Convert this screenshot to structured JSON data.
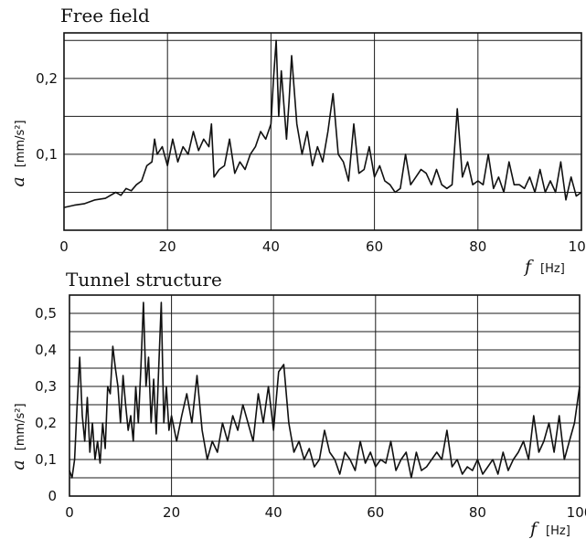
{
  "chart_data": [
    {
      "type": "line",
      "title": "Free field",
      "xlabel_var": "f",
      "xlabel_unit": "[Hz]",
      "ylabel_var": "a",
      "ylabel_unit": "[mm/s²]",
      "xlim": [
        0,
        100
      ],
      "ylim": [
        0,
        0.26
      ],
      "x_ticks": [
        0,
        20,
        40,
        60,
        80,
        100
      ],
      "y_ticks": [
        {
          "value": 0.1,
          "label": "0,1"
        },
        {
          "value": 0.2,
          "label": "0,2"
        }
      ],
      "grid": true,
      "series": [
        {
          "x": [
            0,
            2,
            4,
            6,
            8,
            10,
            11,
            12,
            13,
            14,
            15,
            16,
            17,
            17.5,
            18,
            19,
            20,
            21,
            22,
            23,
            24,
            25,
            26,
            27,
            28,
            28.5,
            29,
            30,
            31,
            32,
            33,
            34,
            35,
            36,
            37,
            38,
            39,
            40,
            40.5,
            41,
            41.5,
            42,
            43,
            43.5,
            44,
            45,
            46,
            47,
            48,
            49,
            50,
            51,
            52,
            53,
            54,
            55,
            56,
            57,
            58,
            59,
            60,
            61,
            62,
            63,
            64,
            65,
            66,
            67,
            68,
            69,
            70,
            71,
            72,
            73,
            74,
            75,
            76,
            77,
            78,
            79,
            80,
            81,
            82,
            83,
            84,
            85,
            86,
            87,
            88,
            89,
            90,
            91,
            92,
            93,
            94,
            95,
            96,
            97,
            98,
            99,
            100
          ],
          "y": [
            0.03,
            0.033,
            0.035,
            0.04,
            0.042,
            0.05,
            0.046,
            0.055,
            0.052,
            0.06,
            0.065,
            0.085,
            0.09,
            0.12,
            0.1,
            0.11,
            0.085,
            0.12,
            0.09,
            0.11,
            0.1,
            0.13,
            0.105,
            0.12,
            0.11,
            0.14,
            0.07,
            0.08,
            0.085,
            0.12,
            0.075,
            0.09,
            0.08,
            0.1,
            0.11,
            0.13,
            0.12,
            0.14,
            0.2,
            0.25,
            0.15,
            0.21,
            0.12,
            0.17,
            0.23,
            0.14,
            0.1,
            0.13,
            0.085,
            0.11,
            0.09,
            0.13,
            0.18,
            0.1,
            0.09,
            0.065,
            0.14,
            0.075,
            0.08,
            0.11,
            0.07,
            0.085,
            0.065,
            0.06,
            0.05,
            0.055,
            0.1,
            0.06,
            0.07,
            0.08,
            0.075,
            0.06,
            0.08,
            0.06,
            0.055,
            0.06,
            0.16,
            0.07,
            0.09,
            0.06,
            0.065,
            0.06,
            0.1,
            0.055,
            0.07,
            0.05,
            0.09,
            0.06,
            0.06,
            0.055,
            0.07,
            0.05,
            0.08,
            0.05,
            0.065,
            0.05,
            0.09,
            0.04,
            0.07,
            0.045,
            0.05
          ]
        }
      ]
    },
    {
      "type": "line",
      "title": "Tunnel structure",
      "xlabel_var": "f",
      "xlabel_unit": "[Hz]",
      "ylabel_var": "a",
      "ylabel_unit": "[mm/s²]",
      "xlim": [
        0,
        100
      ],
      "ylim": [
        0,
        0.55
      ],
      "x_ticks": [
        0,
        20,
        40,
        60,
        80,
        100
      ],
      "y_ticks": [
        {
          "value": 0,
          "label": "0"
        },
        {
          "value": 0.1,
          "label": "0,1"
        },
        {
          "value": 0.2,
          "label": "0,2"
        },
        {
          "value": 0.3,
          "label": "0,3"
        },
        {
          "value": 0.4,
          "label": "0,4"
        },
        {
          "value": 0.5,
          "label": "0,5"
        }
      ],
      "grid": true,
      "series": [
        {
          "x": [
            0,
            0.5,
            1,
            1.5,
            2,
            2.5,
            3,
            3.5,
            4,
            4.5,
            5,
            5.5,
            6,
            6.5,
            7,
            7.5,
            8,
            8.5,
            9,
            9.5,
            10,
            10.5,
            11,
            11.5,
            12,
            12.5,
            13,
            13.5,
            14,
            14.5,
            15,
            15.5,
            16,
            16.5,
            17,
            17.5,
            18,
            18.5,
            19,
            19.5,
            20,
            21,
            22,
            23,
            24,
            25,
            26,
            27,
            28,
            29,
            30,
            31,
            32,
            33,
            34,
            35,
            36,
            37,
            38,
            39,
            40,
            41,
            42,
            43,
            44,
            45,
            46,
            47,
            48,
            49,
            50,
            51,
            52,
            53,
            54,
            55,
            56,
            57,
            58,
            59,
            60,
            61,
            62,
            63,
            64,
            65,
            66,
            67,
            68,
            69,
            70,
            71,
            72,
            73,
            74,
            75,
            76,
            77,
            78,
            79,
            80,
            81,
            82,
            83,
            84,
            85,
            86,
            87,
            88,
            89,
            90,
            91,
            92,
            93,
            94,
            95,
            96,
            97,
            98,
            99,
            100
          ],
          "y": [
            0.07,
            0.05,
            0.1,
            0.25,
            0.38,
            0.22,
            0.15,
            0.27,
            0.12,
            0.2,
            0.1,
            0.15,
            0.09,
            0.2,
            0.13,
            0.3,
            0.28,
            0.41,
            0.35,
            0.3,
            0.2,
            0.33,
            0.25,
            0.18,
            0.22,
            0.15,
            0.3,
            0.2,
            0.35,
            0.53,
            0.3,
            0.38,
            0.2,
            0.32,
            0.17,
            0.35,
            0.53,
            0.2,
            0.3,
            0.18,
            0.22,
            0.15,
            0.22,
            0.28,
            0.2,
            0.33,
            0.18,
            0.1,
            0.15,
            0.12,
            0.2,
            0.15,
            0.22,
            0.18,
            0.25,
            0.2,
            0.15,
            0.28,
            0.2,
            0.3,
            0.18,
            0.34,
            0.36,
            0.2,
            0.12,
            0.15,
            0.1,
            0.13,
            0.08,
            0.1,
            0.18,
            0.12,
            0.1,
            0.06,
            0.12,
            0.1,
            0.07,
            0.15,
            0.09,
            0.12,
            0.08,
            0.1,
            0.09,
            0.15,
            0.07,
            0.1,
            0.12,
            0.05,
            0.12,
            0.07,
            0.08,
            0.1,
            0.12,
            0.1,
            0.18,
            0.08,
            0.1,
            0.06,
            0.08,
            0.07,
            0.1,
            0.06,
            0.08,
            0.1,
            0.06,
            0.12,
            0.07,
            0.1,
            0.12,
            0.15,
            0.1,
            0.22,
            0.12,
            0.15,
            0.2,
            0.12,
            0.22,
            0.1,
            0.15,
            0.2,
            0.3
          ]
        }
      ]
    }
  ]
}
